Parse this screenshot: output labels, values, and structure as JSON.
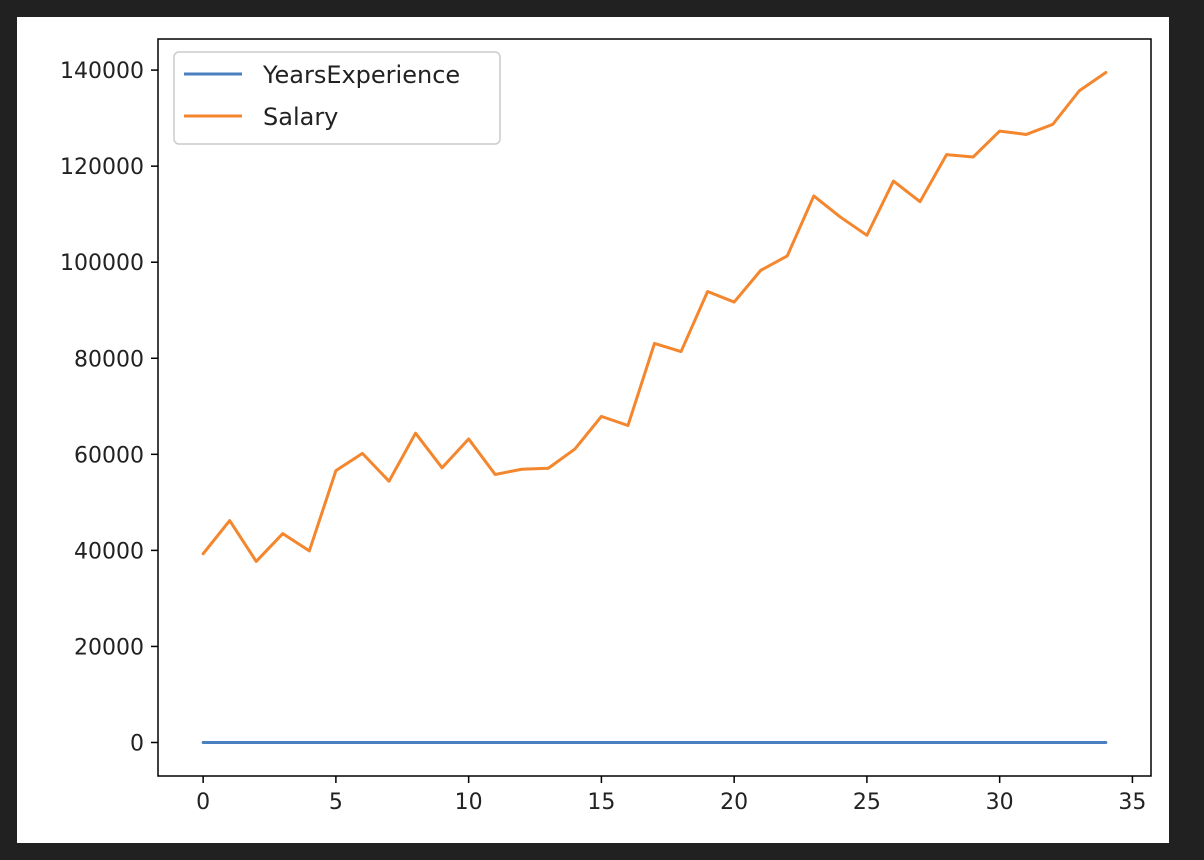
{
  "chart_data": {
    "type": "line",
    "x": [
      0,
      1,
      2,
      3,
      4,
      5,
      6,
      7,
      8,
      9,
      10,
      11,
      12,
      13,
      14,
      15,
      16,
      17,
      18,
      19,
      20,
      21,
      22,
      23,
      24,
      25,
      26,
      27,
      28,
      29,
      30,
      31,
      32,
      33,
      34
    ],
    "series": [
      {
        "name": "YearsExperience",
        "color": "#4a7fc0",
        "values": [
          1.1,
          1.3,
          1.5,
          2.0,
          2.2,
          2.9,
          3.0,
          3.2,
          3.2,
          3.7,
          3.9,
          4.0,
          4.0,
          4.1,
          4.5,
          4.9,
          5.1,
          5.3,
          5.9,
          6.0,
          6.8,
          7.1,
          7.9,
          8.2,
          8.7,
          9.0,
          9.5,
          9.6,
          10.3,
          10.5,
          11.2,
          11.5,
          12.3,
          12.9,
          13.5
        ]
      },
      {
        "name": "Salary",
        "color": "#f4862d",
        "values": [
          39300,
          46200,
          37700,
          43500,
          39900,
          56600,
          60200,
          54400,
          64400,
          57200,
          63200,
          55800,
          56900,
          57100,
          61100,
          67900,
          66000,
          83100,
          81400,
          93900,
          91700,
          98300,
          101300,
          113800,
          109400,
          105600,
          116900,
          112600,
          122400,
          121900,
          127300,
          126600,
          128700,
          135700,
          139500
        ]
      }
    ],
    "xlim": [
      -1.7,
      35.7
    ],
    "ylim": [
      -6975,
      146475
    ],
    "xticks": [
      "0",
      "5",
      "10",
      "15",
      "20",
      "25",
      "30",
      "35"
    ],
    "yticks": [
      "0",
      "20000",
      "40000",
      "60000",
      "80000",
      "100000",
      "120000",
      "140000"
    ],
    "legend_position": "upper-left",
    "grid": false,
    "title": "",
    "xlabel": "",
    "ylabel": ""
  }
}
